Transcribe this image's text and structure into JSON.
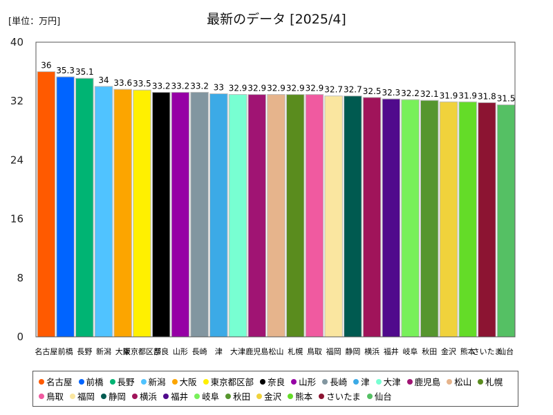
{
  "chart_data": {
    "type": "bar",
    "title": "最新のデータ [2025/4]",
    "unit_label": "[単位：万円]",
    "ylim": [
      0,
      40
    ],
    "yticks": [
      0,
      8,
      16,
      24,
      32,
      40
    ],
    "grid": false,
    "legend_position": "bottom",
    "categories": [
      "名古屋",
      "前橋",
      "長野",
      "新潟",
      "大阪",
      "東京都区部",
      "奈良",
      "山形",
      "長崎",
      "津",
      "大津",
      "鹿児島",
      "松山",
      "札幌",
      "鳥取",
      "福岡",
      "静岡",
      "横浜",
      "福井",
      "岐阜",
      "秋田",
      "金沢",
      "熊本",
      "さいたま",
      "仙台"
    ],
    "axis_labels": [
      "名古屋",
      "前橋",
      "長野",
      "新潟",
      "大阪",
      "東京都区部",
      "奈良",
      "山形",
      "長崎",
      "津",
      "大津",
      "鹿児島",
      "松山",
      "札幌",
      "鳥取",
      "福岡",
      "静岡",
      "横浜",
      "福井",
      "岐阜",
      "秋田",
      "金沢",
      "熊本",
      "さいたま",
      "仙台"
    ],
    "values": [
      36,
      35.3,
      35.1,
      34,
      33.6,
      33.5,
      33.2,
      33.2,
      33.2,
      33,
      32.9,
      32.9,
      32.9,
      32.9,
      32.9,
      32.7,
      32.7,
      32.5,
      32.3,
      32.2,
      32.1,
      31.9,
      31.9,
      31.8,
      31.5
    ],
    "value_labels": [
      "36",
      "35.3",
      "35.1",
      "34",
      "33.6",
      "33.5",
      "33.2",
      "33.2",
      "33.2",
      "33",
      "32.9",
      "32.9",
      "32.9",
      "32.9",
      "32.9",
      "32.7",
      "32.7",
      "32.5",
      "32.3",
      "32.2",
      "32.1",
      "31.9",
      "31.9",
      "31.8",
      "31.5"
    ],
    "colors": [
      "#ff5a00",
      "#0064ff",
      "#00b473",
      "#50c3ff",
      "#fca500",
      "#fff000",
      "#000000",
      "#9600a5",
      "#8296a0",
      "#3caae6",
      "#78ffd2",
      "#a01473",
      "#e6b48c",
      "#5a8c1e",
      "#f05aa0",
      "#fae6a0",
      "#005a50",
      "#a0145a",
      "#500a8c",
      "#78f05a",
      "#56962e",
      "#f0d23c",
      "#64dc28",
      "#8c1432",
      "#55c064"
    ]
  }
}
